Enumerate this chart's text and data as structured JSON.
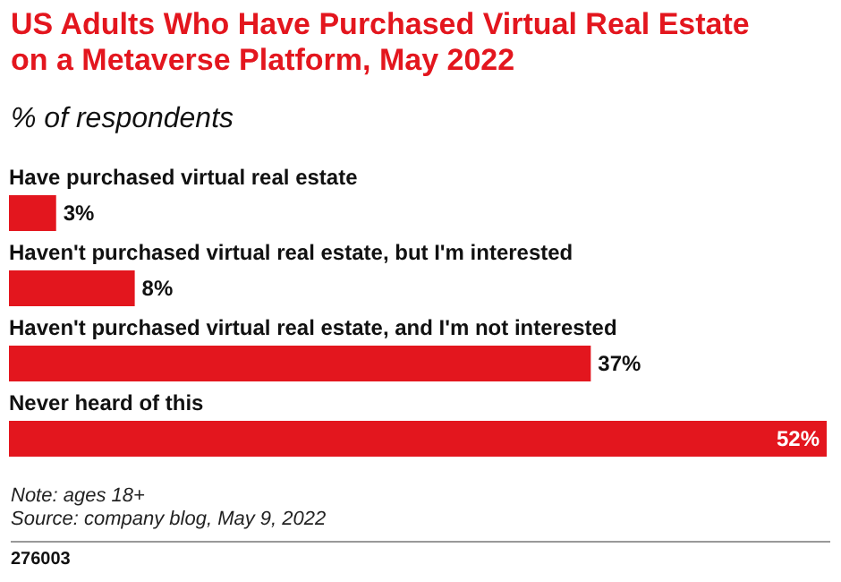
{
  "chart_data": {
    "type": "bar",
    "orientation": "horizontal",
    "title": "US Adults Who Have Purchased Virtual Real Estate on a Metaverse Platform, May 2022",
    "subtitle": "% of respondents",
    "categories": [
      "Have purchased virtual real estate",
      "Haven't purchased virtual real estate, but I'm interested",
      "Haven't purchased virtual real estate, and I'm not interested",
      "Never heard of this"
    ],
    "values": [
      3,
      8,
      37,
      52
    ],
    "value_labels": [
      "3%",
      "8%",
      "37%",
      "52%"
    ],
    "color": "#e3161e",
    "xlim": [
      0,
      52
    ],
    "tick_labels": false,
    "annotations": [
      "Note: ages 18+",
      "Source: company blog, May 9, 2022",
      "276003"
    ]
  }
}
